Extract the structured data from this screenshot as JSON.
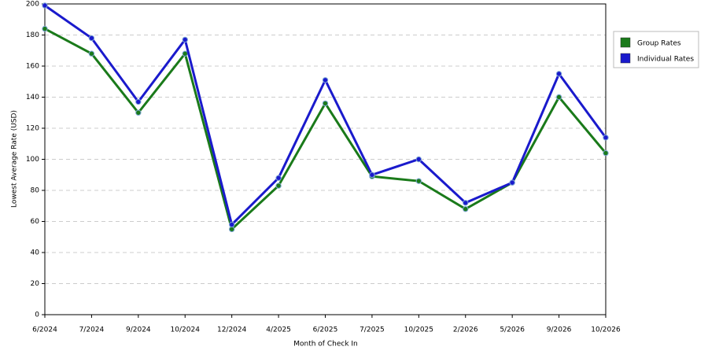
{
  "chart_data": {
    "type": "line",
    "x_label": "Month of Check In",
    "y_label": "Lowest Average Rate (USD)",
    "categories": [
      "6/2024",
      "7/2024",
      "9/2024",
      "10/2024",
      "12/2024",
      "4/2025",
      "6/2025",
      "7/2025",
      "10/2025",
      "2/2026",
      "5/2026",
      "9/2026",
      "10/2026"
    ],
    "series": [
      {
        "name": "Group Rates",
        "color": "#1a7a1a",
        "values": [
          184,
          168,
          130,
          168,
          55,
          83,
          136,
          89,
          86,
          68,
          85,
          140,
          104
        ]
      },
      {
        "name": "Individual Rates",
        "color": "#1a1acc",
        "values": [
          199,
          178,
          137,
          177,
          58,
          88,
          151,
          90,
          100,
          72,
          85,
          155,
          114
        ]
      }
    ],
    "ylim": [
      0,
      200
    ],
    "yticks": [
      0,
      20,
      40,
      60,
      80,
      100,
      120,
      140,
      160,
      180,
      200
    ],
    "grid": true,
    "legend": "right"
  }
}
